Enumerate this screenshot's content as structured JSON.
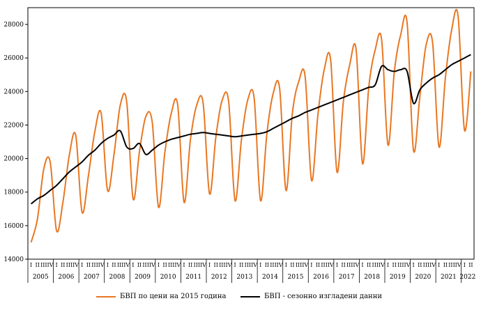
{
  "chart_data": {
    "type": "line",
    "title": "",
    "xlabel": "",
    "ylabel": "",
    "ylim": [
      14000,
      29000
    ],
    "yticks": [
      14000,
      16000,
      18000,
      20000,
      22000,
      24000,
      26000,
      28000
    ],
    "grid": false,
    "legend_position": "bottom",
    "quarter_labels": [
      "I",
      "II",
      "III",
      "IV"
    ],
    "years": [
      "2005",
      "2006",
      "2007",
      "2008",
      "2009",
      "2010",
      "2011",
      "2012",
      "2013",
      "2014",
      "2015",
      "2016",
      "2017",
      "2018",
      "2019",
      "2020",
      "2021",
      "2022"
    ],
    "series": [
      {
        "name": "БВП по цени на 2015 година",
        "color": "#e87722",
        "values": [
          15000,
          16400,
          19400,
          19800,
          15700,
          17400,
          20200,
          21400,
          16800,
          19000,
          21600,
          22700,
          18100,
          20200,
          23200,
          23400,
          17600,
          20400,
          22500,
          22200,
          17100,
          20400,
          22700,
          23200,
          17400,
          21100,
          23200,
          23300,
          17900,
          21300,
          23500,
          23400,
          17500,
          21100,
          23500,
          23600,
          17500,
          21500,
          23900,
          24200,
          18100,
          22700,
          24600,
          24900,
          18700,
          22600,
          25300,
          25900,
          19200,
          23400,
          25600,
          26500,
          19700,
          24300,
          26500,
          27100,
          20800,
          25200,
          27400,
          28100,
          20500,
          23700,
          26800,
          26900,
          20700,
          24800,
          27700,
          28500,
          21700,
          25200
        ]
      },
      {
        "name": "БВП - сезонно изгладени данни",
        "color": "#000000",
        "values": [
          17300,
          17600,
          17800,
          18100,
          18400,
          18800,
          19200,
          19500,
          19800,
          20200,
          20500,
          20900,
          21200,
          21400,
          21650,
          20700,
          20600,
          20900,
          20250,
          20500,
          20800,
          21000,
          21150,
          21250,
          21350,
          21450,
          21500,
          21550,
          21500,
          21450,
          21400,
          21350,
          21300,
          21350,
          21400,
          21450,
          21500,
          21600,
          21800,
          22000,
          22200,
          22400,
          22550,
          22750,
          22900,
          23050,
          23200,
          23350,
          23500,
          23650,
          23800,
          23950,
          24100,
          24250,
          24400,
          25500,
          25300,
          25200,
          25300,
          25200,
          23300,
          24100,
          24500,
          24800,
          25000,
          25300,
          25600,
          25800,
          26000,
          26200
        ]
      }
    ]
  }
}
